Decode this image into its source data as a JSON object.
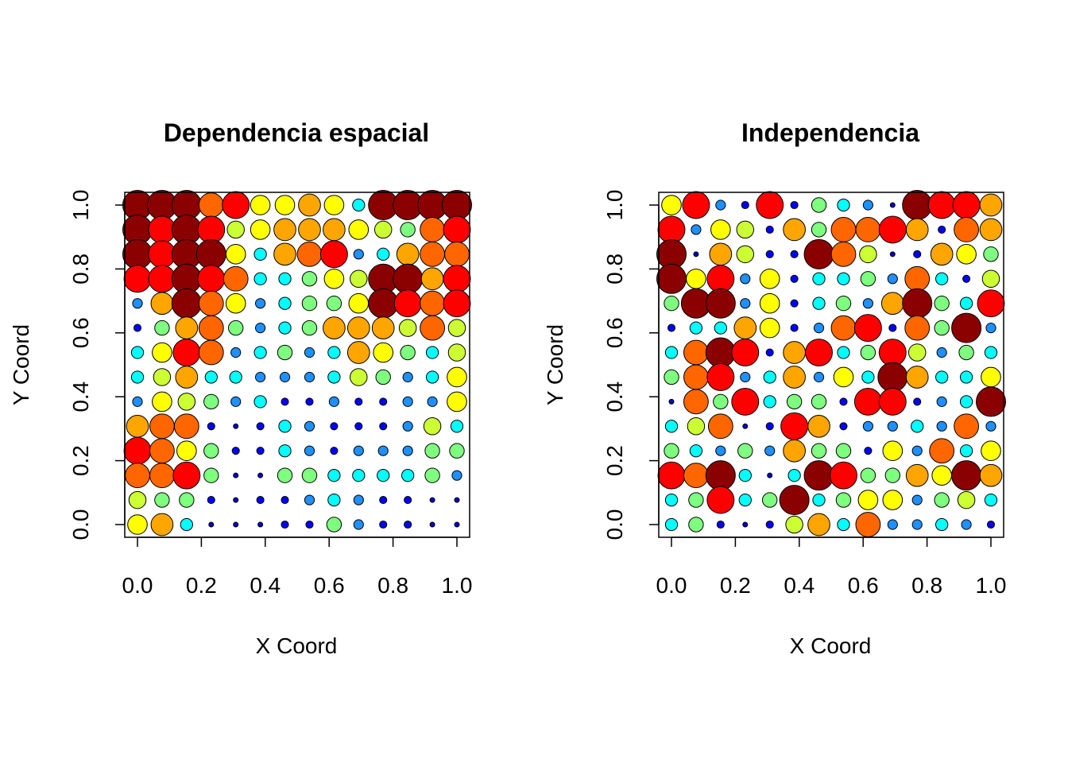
{
  "chart_data": [
    {
      "type": "scatter",
      "title": "Dependencia espacial",
      "xlabel": "X Coord",
      "ylabel": "Y Coord",
      "xlim": [
        0,
        1
      ],
      "ylim": [
        0,
        1
      ],
      "x_ticks": [
        "0.0",
        "0.2",
        "0.4",
        "0.6",
        "0.8",
        "1.0"
      ],
      "y_ticks": [
        "0.0",
        "0.2",
        "0.4",
        "0.6",
        "0.8",
        "1.0"
      ],
      "grid": false,
      "point_encoding": "value on a 0-10 scale drives both symbol size and color (blue low → dark red high)",
      "palette": [
        "#0000CC",
        "#0000FF",
        "#1E90FF",
        "#00FFFF",
        "#7FFF7F",
        "#CCFF33",
        "#FFFF00",
        "#FFA500",
        "#FF6600",
        "#FF0000",
        "#8B0000"
      ],
      "grid_coords": [
        0,
        0.0769,
        0.1538,
        0.2308,
        0.3077,
        0.3846,
        0.4615,
        0.5385,
        0.6154,
        0.6923,
        0.7692,
        0.8462,
        0.9231,
        1.0
      ],
      "values_rows_top_to_bottom": [
        [
          10,
          10,
          10,
          8,
          9,
          6,
          6,
          7,
          6,
          3,
          10,
          10,
          10,
          10
        ],
        [
          10,
          9,
          10,
          9,
          5,
          6,
          7,
          7,
          7,
          6,
          5,
          4,
          8,
          9
        ],
        [
          10,
          9,
          10,
          10,
          6,
          3,
          7,
          8,
          9,
          2,
          3,
          7,
          8,
          8
        ],
        [
          9,
          9,
          10,
          9,
          8,
          3,
          3,
          4,
          6,
          5,
          10,
          10,
          7,
          9
        ],
        [
          2,
          7,
          10,
          8,
          6,
          2,
          3,
          4,
          4,
          6,
          10,
          9,
          8,
          9
        ],
        [
          1,
          4,
          7,
          8,
          4,
          2,
          3,
          4,
          7,
          7,
          7,
          5,
          8,
          5
        ],
        [
          3,
          6,
          9,
          8,
          2,
          3,
          4,
          2,
          3,
          7,
          6,
          4,
          3,
          5
        ],
        [
          3,
          5,
          7,
          3,
          3,
          2,
          2,
          2,
          3,
          5,
          4,
          2,
          3,
          6
        ],
        [
          2,
          6,
          5,
          4,
          2,
          3,
          1,
          1,
          2,
          1,
          1,
          2,
          2,
          6
        ],
        [
          7,
          8,
          8,
          1,
          0,
          1,
          3,
          2,
          1,
          1,
          1,
          2,
          5,
          3
        ],
        [
          9,
          8,
          6,
          4,
          1,
          1,
          3,
          2,
          1,
          2,
          2,
          2,
          4,
          4
        ],
        [
          8,
          8,
          9,
          4,
          0,
          0,
          4,
          4,
          3,
          3,
          3,
          3,
          4,
          2
        ],
        [
          5,
          4,
          4,
          1,
          0,
          1,
          1,
          2,
          3,
          2,
          1,
          1,
          0,
          0
        ],
        [
          6,
          7,
          3,
          0,
          0,
          0,
          1,
          1,
          4,
          2,
          1,
          1,
          0,
          0
        ]
      ]
    },
    {
      "type": "scatter",
      "title": "Independencia",
      "xlabel": "X Coord",
      "ylabel": "Y Coord",
      "xlim": [
        0,
        1
      ],
      "ylim": [
        0,
        1
      ],
      "x_ticks": [
        "0.0",
        "0.2",
        "0.4",
        "0.6",
        "0.8",
        "1.0"
      ],
      "y_ticks": [
        "0.0",
        "0.2",
        "0.4",
        "0.6",
        "0.8",
        "1.0"
      ],
      "grid": false,
      "point_encoding": "value on a 0-10 scale drives both symbol size and color (blue low → dark red high)",
      "palette": [
        "#0000CC",
        "#0000FF",
        "#1E90FF",
        "#00FFFF",
        "#7FFF7F",
        "#CCFF33",
        "#FFFF00",
        "#FFA500",
        "#FF6600",
        "#FF0000",
        "#8B0000"
      ],
      "grid_coords": [
        0,
        0.0769,
        0.1538,
        0.2308,
        0.3077,
        0.3846,
        0.4615,
        0.5385,
        0.6154,
        0.6923,
        0.7692,
        0.8462,
        0.9231,
        1.0
      ],
      "values_rows_top_to_bottom": [
        [
          6,
          9,
          2,
          1,
          9,
          1,
          4,
          3,
          2,
          0,
          10,
          9,
          9,
          7
        ],
        [
          9,
          2,
          6,
          5,
          1,
          7,
          4,
          8,
          8,
          9,
          7,
          1,
          8,
          7
        ],
        [
          10,
          0,
          7,
          5,
          1,
          1,
          10,
          8,
          5,
          0,
          1,
          7,
          6,
          4
        ],
        [
          10,
          6,
          9,
          2,
          6,
          1,
          3,
          3,
          4,
          2,
          8,
          3,
          1,
          5
        ],
        [
          4,
          10,
          10,
          2,
          6,
          1,
          3,
          4,
          2,
          7,
          10,
          4,
          3,
          9
        ],
        [
          1,
          3,
          3,
          7,
          6,
          1,
          2,
          8,
          9,
          1,
          8,
          4,
          10,
          2
        ],
        [
          3,
          8,
          10,
          9,
          1,
          7,
          9,
          3,
          4,
          9,
          5,
          2,
          4,
          3
        ],
        [
          4,
          8,
          9,
          2,
          3,
          7,
          2,
          6,
          3,
          10,
          7,
          3,
          3,
          6
        ],
        [
          0,
          8,
          4,
          9,
          3,
          4,
          4,
          1,
          9,
          9,
          1,
          2,
          3,
          10
        ],
        [
          3,
          5,
          8,
          0,
          1,
          9,
          7,
          1,
          2,
          2,
          3,
          2,
          8,
          2
        ],
        [
          4,
          3,
          2,
          4,
          2,
          7,
          4,
          4,
          1,
          6,
          2,
          8,
          3,
          6
        ],
        [
          9,
          8,
          10,
          3,
          0,
          3,
          10,
          9,
          4,
          4,
          7,
          6,
          10,
          7
        ],
        [
          3,
          4,
          9,
          3,
          4,
          10,
          3,
          4,
          6,
          6,
          2,
          4,
          5,
          3
        ],
        [
          3,
          4,
          1,
          0,
          1,
          5,
          7,
          3,
          8,
          2,
          2,
          3,
          2,
          1
        ]
      ]
    }
  ]
}
